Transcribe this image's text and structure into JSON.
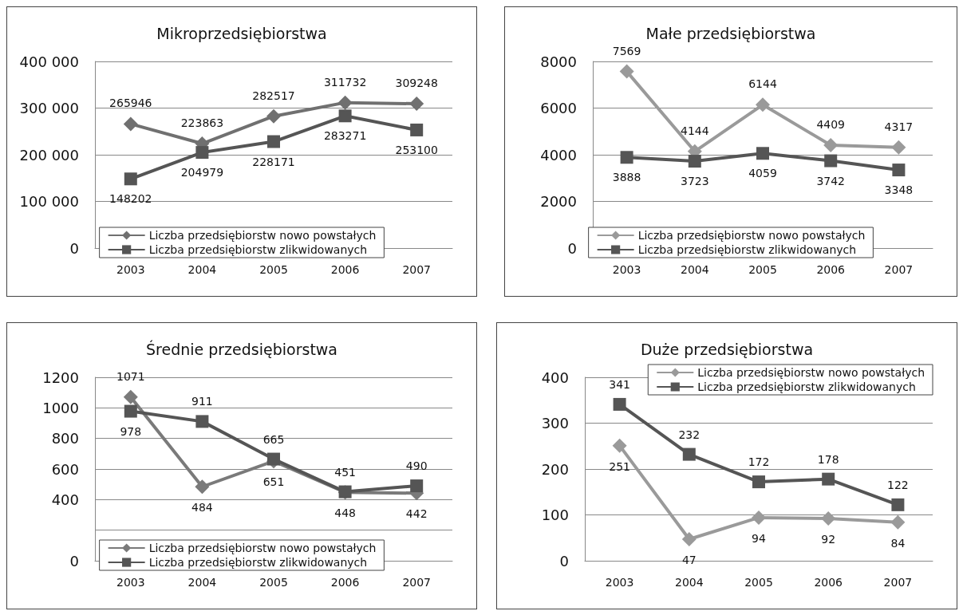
{
  "chart_data": [
    {
      "type": "line",
      "title": "Mikroprzedsiębiorstwa",
      "categories": [
        "2003",
        "2004",
        "2005",
        "2006",
        "2007"
      ],
      "ylim": [
        0,
        400000
      ],
      "yticks": [
        0,
        {
          "value": 100000,
          "label": "100 000"
        },
        {
          "value": 200000,
          "label": "200 000"
        },
        {
          "value": 300000,
          "label": "300 000"
        },
        {
          "value": 400000,
          "label": "400 000"
        }
      ],
      "grid": "y",
      "legend": "bottom",
      "data_labels": true,
      "series": [
        {
          "name": "Liczba przedsiębiorstw nowo powstałych",
          "color": "#707070",
          "marker": "diamond",
          "values": [
            265946,
            223863,
            282517,
            311732,
            309248
          ]
        },
        {
          "name": "Liczba przedsiębiorstw zlikwidowanych",
          "color": "#555555",
          "marker": "square",
          "values": [
            148202,
            204979,
            228171,
            283271,
            253100
          ]
        }
      ]
    },
    {
      "type": "line",
      "title": "Małe przedsiębiorstwa",
      "categories": [
        "2003",
        "2004",
        "2005",
        "2006",
        "2007"
      ],
      "ylim": [
        0,
        8000
      ],
      "yticks": [
        0,
        2000,
        4000,
        6000,
        8000
      ],
      "grid": "y",
      "legend": "bottom",
      "data_labels": true,
      "series": [
        {
          "name": "Liczba przedsiębiorstw nowo powstałych",
          "color": "#9a9a9a",
          "marker": "diamond",
          "values": [
            7569,
            4144,
            6144,
            4409,
            4317
          ]
        },
        {
          "name": "Liczba przedsiębiorstw zlikwidowanych",
          "color": "#555555",
          "marker": "square",
          "values": [
            3888,
            3723,
            4059,
            3742,
            3348
          ]
        }
      ]
    },
    {
      "type": "line",
      "title": "Średnie przedsiębiorstwa",
      "categories": [
        "2003",
        "2004",
        "2005",
        "2006",
        "2007"
      ],
      "ylim": [
        0,
        1200
      ],
      "yticks": [
        0,
        {
          "value": 200,
          "label": null
        },
        400,
        600,
        800,
        1000,
        1200
      ],
      "grid": "y",
      "legend": "bottom",
      "data_labels": true,
      "series": [
        {
          "name": "Liczba przedsiębiorstw nowo powstałych",
          "color": "#7a7a7a",
          "marker": "diamond",
          "values": [
            1071,
            484,
            651,
            448,
            442
          ]
        },
        {
          "name": "Liczba przedsiębiorstw zlikwidowanych",
          "color": "#555555",
          "marker": "square",
          "values": [
            978,
            911,
            665,
            451,
            490
          ]
        }
      ]
    },
    {
      "type": "line",
      "title": "Duże przedsiębiorstwa",
      "categories": [
        "2003",
        "2004",
        "2005",
        "2006",
        "2007"
      ],
      "ylim": [
        0,
        400
      ],
      "yticks": [
        0,
        100,
        200,
        300,
        400
      ],
      "grid": "y",
      "legend": "top right",
      "data_labels": true,
      "series": [
        {
          "name": "Liczba przedsiębiorstw nowo powstałych",
          "color": "#9a9a9a",
          "marker": "diamond",
          "values": [
            251,
            47,
            94,
            92,
            84
          ]
        },
        {
          "name": "Liczba przedsiębiorstw zlikwidowanych",
          "color": "#555555",
          "marker": "square",
          "values": [
            341,
            232,
            172,
            178,
            122
          ]
        }
      ]
    }
  ]
}
